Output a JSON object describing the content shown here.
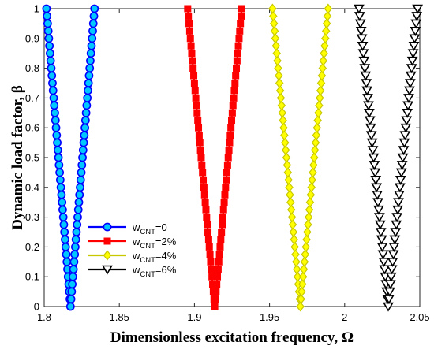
{
  "chart_data": {
    "type": "line",
    "title": "",
    "xlabel": "Dimensionless excitation frequency, Ω",
    "ylabel": "Dynamic load factor, β",
    "xlim": [
      1.8,
      2.05
    ],
    "ylim": [
      0,
      1
    ],
    "xticks": [
      "1.8",
      "1.85",
      "1.9",
      "1.95",
      "2",
      "2.05"
    ],
    "xtick_values": [
      1.8,
      1.85,
      1.9,
      1.95,
      2.0,
      2.05
    ],
    "yticks": [
      "0",
      "0.1",
      "0.2",
      "0.3",
      "0.4",
      "0.5",
      "0.6",
      "0.7",
      "0.8",
      "0.9",
      "1"
    ],
    "ytick_values": [
      0,
      0.1,
      0.2,
      0.3,
      0.4,
      0.5,
      0.6,
      0.7,
      0.8,
      0.9,
      1.0
    ],
    "grid": false,
    "legend_position": "lower-left",
    "series": [
      {
        "name": "w_CNT=0",
        "legend_main": "w",
        "legend_sub": "CNT",
        "legend_suffix": "=0",
        "color": "#0000ff",
        "marker": "circle",
        "marker_fill": "#00c8ff",
        "center": 1.8175,
        "left_edge_at_1": 1.8015,
        "right_edge_at_1": 1.8335
      },
      {
        "name": "w_CNT=2%",
        "legend_main": "w",
        "legend_sub": "CNT",
        "legend_suffix": "=2%",
        "color": "#ff0000",
        "marker": "square",
        "marker_fill": "#ff0000",
        "center": 1.9135,
        "left_edge_at_1": 1.8955,
        "right_edge_at_1": 1.9315
      },
      {
        "name": "w_CNT=4%",
        "legend_main": "w",
        "legend_sub": "CNT",
        "legend_suffix": "=4%",
        "color": "#c8c800",
        "marker": "diamond",
        "marker_fill": "#ffff00",
        "center": 1.9705,
        "left_edge_at_1": 1.952,
        "right_edge_at_1": 1.989
      },
      {
        "name": "w_CNT=6%",
        "legend_main": "w",
        "legend_sub": "CNT",
        "legend_suffix": "=6%",
        "color": "#000000",
        "marker": "triangle-down",
        "marker_fill": "#ffffff",
        "center": 2.029,
        "left_edge_at_1": 2.0095,
        "right_edge_at_1": 2.0485
      }
    ]
  }
}
